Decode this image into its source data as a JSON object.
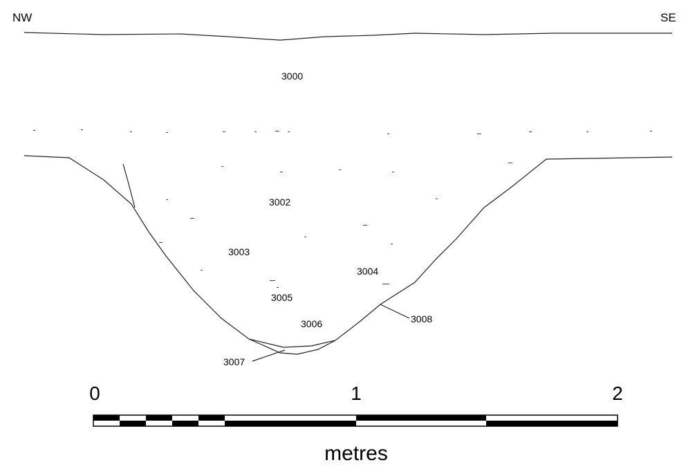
{
  "orientation": {
    "left": "NW",
    "right": "SE"
  },
  "contexts": [
    "3000",
    "3002",
    "3003",
    "3004",
    "3005",
    "3006",
    "3007",
    "3008"
  ],
  "scale": {
    "ticks": [
      "0",
      "1",
      "2"
    ],
    "unit": "metres"
  }
}
